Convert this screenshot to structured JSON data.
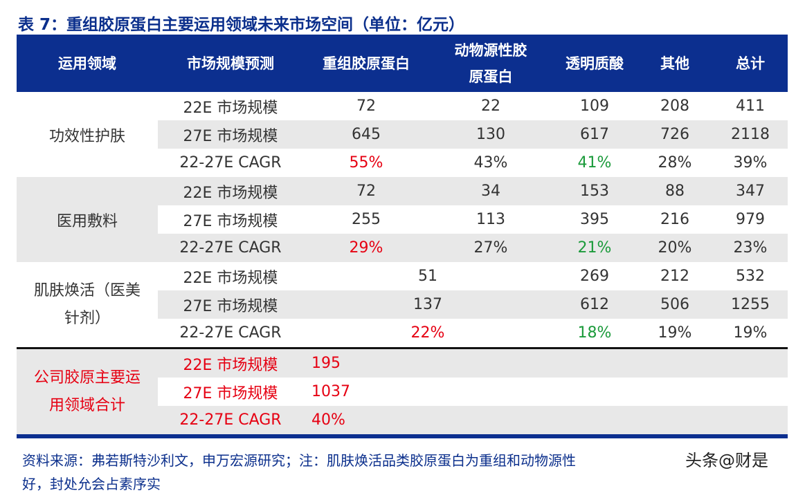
{
  "title": "表 7：重组胶原蛋白主要运用领域未来市场空间（单位：亿元）",
  "headers": [
    "运用领域",
    "市场规模预测",
    "重组胶原蛋白",
    "动物源性胶原蛋白",
    "透明质酸",
    "其他",
    "总计"
  ],
  "header_lines": {
    "animal_1": "动物源性胶",
    "animal_2": "原蛋白"
  },
  "groups": [
    {
      "name": "功效性护肤",
      "rows": [
        {
          "metric": "22E 市场规模",
          "values": [
            "72",
            "22",
            "109",
            "208",
            "411"
          ]
        },
        {
          "metric": "27E 市场规模",
          "values": [
            "645",
            "130",
            "617",
            "726",
            "2118"
          ]
        },
        {
          "metric": "22-27E CAGR",
          "values": [
            "55%",
            "43%",
            "41%",
            "28%",
            "39%"
          ]
        }
      ]
    },
    {
      "name": "医用敷料",
      "rows": [
        {
          "metric": "22E 市场规模",
          "values": [
            "72",
            "34",
            "153",
            "88",
            "347"
          ]
        },
        {
          "metric": "27E 市场规模",
          "values": [
            "255",
            "113",
            "395",
            "216",
            "979"
          ]
        },
        {
          "metric": "22-27E CAGR",
          "values": [
            "29%",
            "27%",
            "21%",
            "20%",
            "23%"
          ]
        }
      ]
    },
    {
      "name": "肌肤焕活（医美针剂）",
      "name_lines": [
        "肌肤焕活（医美",
        "针剂）"
      ],
      "rows": [
        {
          "metric": "22E 市场规模",
          "values": [
            "51",
            "269",
            "212",
            "532"
          ]
        },
        {
          "metric": "27E 市场规模",
          "values": [
            "137",
            "612",
            "506",
            "1255"
          ]
        },
        {
          "metric": "22-27E CAGR",
          "values": [
            "22%",
            "18%",
            "19%",
            "19%"
          ]
        }
      ]
    },
    {
      "name": "公司胶原主要运用领域合计",
      "name_lines": [
        "公司胶原主要运",
        "用领域合计"
      ],
      "rows": [
        {
          "metric": "22E 市场规模",
          "values": [
            "195"
          ]
        },
        {
          "metric": "27E 市场规模",
          "values": [
            "1037"
          ]
        },
        {
          "metric": "22-27E CAGR",
          "values": [
            "40%"
          ]
        }
      ]
    }
  ],
  "colors": {
    "header": "#0c2f8f",
    "highlight_red": "#e60012",
    "highlight_green": "#1a9a3a"
  },
  "note": "资料来源：弗若斯特沙利文，申万宏源研究；注：肌肤焕活品类胶原蛋白为重组和动物源性",
  "note_line2": "好，封处允会占素序实",
  "watermark": "头条@财是"
}
